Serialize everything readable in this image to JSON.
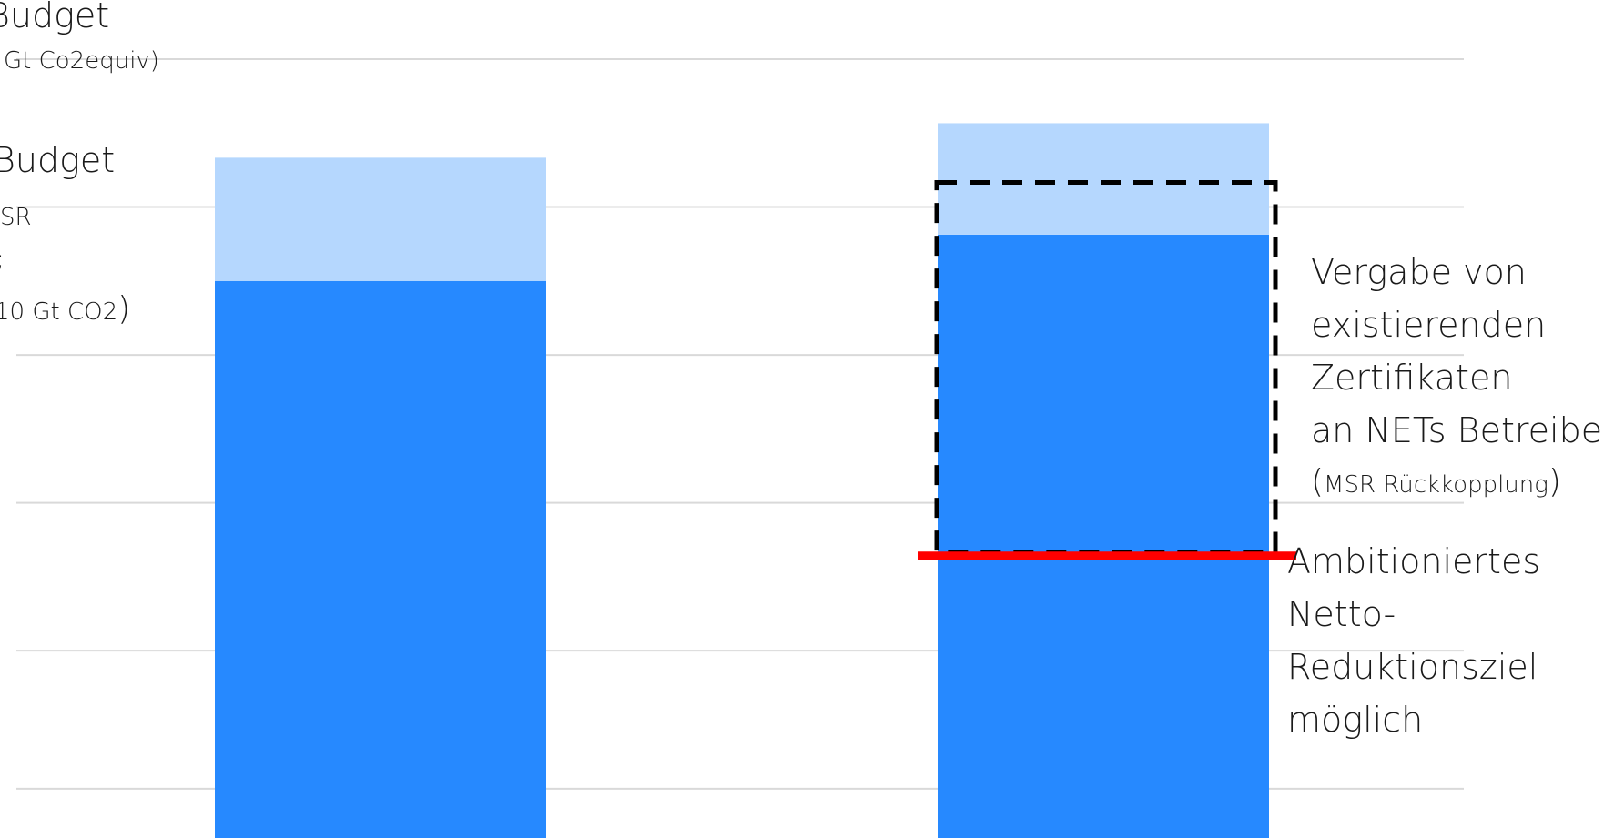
{
  "chart_data": {
    "type": "bar",
    "stacked": true,
    "categories": [
      "",
      ""
    ],
    "series": [
      {
        "name": "",
        "values": [
          565,
          612
        ],
        "color": "#2689ff"
      },
      {
        "name": "",
        "values": [
          125,
          113
        ],
        "color": "#b5d7fe"
      }
    ],
    "ylim": [
      0,
      850
    ],
    "grid": true,
    "grid_values": [
      50,
      190,
      340,
      490,
      640,
      790
    ],
    "reference_line": {
      "value": 290,
      "color": "#ff0000"
    },
    "dashed_box": {
      "value_low": 290,
      "value_high": 665,
      "color": "#000000"
    },
    "annotations": {
      "left_budget_top": "Budget",
      "left_budget_top_unit": "Gt Co2equiv)",
      "left_budget_mid": "Budget",
      "left_budget_mid_msr": "SR",
      "left_budget_mid_semicolon": ";",
      "left_budget_mid_amount": "10 Gt CO2",
      "left_budget_mid_paren": ")",
      "right_vergabe_line1": "Vergabe von",
      "right_vergabe_line2": "existierenden",
      "right_vergabe_line3": "Zertifikaten",
      "right_vergabe_line4": "an NETs Betreibe",
      "right_vergabe_paren_open": "(",
      "right_vergabe_msr": "MSR Rückkopplung",
      "right_vergabe_paren_close": ")",
      "right_ambition_line1": "Ambitioniertes",
      "right_ambition_line2": "Netto-",
      "right_ambition_line3": "Reduktionsziel",
      "right_ambition_line4": "möglich"
    }
  }
}
